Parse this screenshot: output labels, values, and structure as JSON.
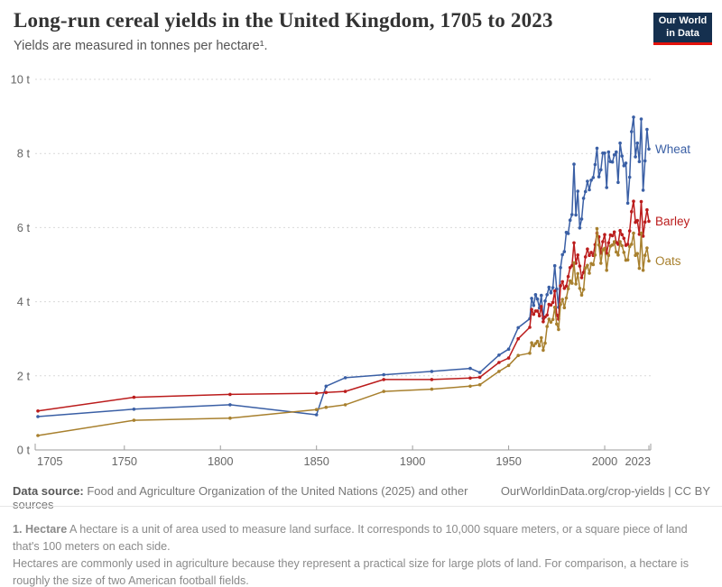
{
  "header": {
    "title": "Long-run cereal yields in the United Kingdom, 1705 to 2023",
    "subtitle": "Yields are measured in tonnes per hectare¹.",
    "logo": {
      "line1": "Our World",
      "line2": "in Data"
    }
  },
  "footer": {
    "source_label": "Data source:",
    "source_text": " Food and Agriculture Organization of the United Nations (2025) and other sources",
    "link": "OurWorldinData.org/crop-yields",
    "license": " | CC BY"
  },
  "footnote": {
    "term": "1. Hectare",
    "line1": " A hectare is a unit of area used to measure land surface. It corresponds to 10,000 square meters, or a square piece of land that's 100 meters on each side.",
    "line2": "Hectares are commonly used in agriculture because they represent a practical size for large plots of land. For comparison, a hectare is roughly the size of two American football fields."
  },
  "colors": {
    "wheat": "#3a5fa5",
    "barley": "#bb1c1c",
    "oats": "#a8802e",
    "grid": "#d9d9d9",
    "axis": "#9e9e9e",
    "tick_text": "#666666",
    "logo_bg": "#15304F",
    "logo_underline": "#e3120b"
  },
  "chart_data": {
    "type": "line",
    "title": "Long-run cereal yields in the United Kingdom, 1705 to 2023",
    "ylabel": "tonnes per hectare",
    "xlabel": "",
    "grid": true,
    "legend_position": "right-end-labels",
    "xlim": [
      1705,
      2023
    ],
    "ylim": [
      0,
      10
    ],
    "x_ticks": [
      1705,
      1750,
      1800,
      1850,
      1900,
      1950,
      2000,
      2023
    ],
    "x_tick_labels": [
      "1705",
      "1750",
      "1800",
      "1850",
      "1900",
      "1950",
      "2000",
      "2023"
    ],
    "y_ticks": [
      0,
      2,
      4,
      6,
      8,
      10
    ],
    "y_tick_labels": [
      "0 t",
      "2 t",
      "4 t",
      "6 t",
      "8 t",
      "10 t"
    ],
    "x": [
      1705,
      1755,
      1805,
      1850,
      1855,
      1865,
      1885,
      1910,
      1930,
      1935,
      1945,
      1950,
      1955,
      1961,
      1962,
      1963,
      1964,
      1965,
      1966,
      1967,
      1968,
      1969,
      1970,
      1971,
      1972,
      1973,
      1974,
      1975,
      1976,
      1977,
      1978,
      1979,
      1980,
      1981,
      1982,
      1983,
      1984,
      1985,
      1986,
      1987,
      1988,
      1989,
      1990,
      1991,
      1992,
      1993,
      1994,
      1995,
      1996,
      1997,
      1998,
      1999,
      2000,
      2001,
      2002,
      2003,
      2004,
      2005,
      2006,
      2007,
      2008,
      2009,
      2010,
      2011,
      2012,
      2013,
      2014,
      2015,
      2016,
      2017,
      2018,
      2019,
      2020,
      2021,
      2022,
      2023
    ],
    "series": [
      {
        "name": "Wheat",
        "color": "#3a5fa5",
        "values": [
          0.9,
          1.1,
          1.22,
          0.95,
          1.72,
          1.95,
          2.03,
          2.12,
          2.2,
          2.09,
          2.56,
          2.72,
          3.3,
          3.54,
          4.09,
          3.9,
          4.19,
          4.07,
          3.83,
          4.17,
          3.55,
          4.02,
          4.19,
          4.39,
          4.24,
          4.38,
          4.97,
          4.34,
          3.85,
          4.92,
          5.27,
          5.35,
          5.87,
          5.84,
          6.2,
          6.35,
          7.71,
          6.34,
          6.98,
          5.99,
          6.23,
          6.79,
          6.97,
          7.25,
          7.02,
          7.28,
          7.35,
          7.7,
          8.14,
          7.37,
          7.56,
          8.01,
          8.01,
          7.08,
          8.04,
          7.78,
          7.77,
          7.96,
          8.04,
          7.22,
          8.28,
          7.93,
          7.67,
          7.74,
          6.66,
          7.36,
          8.59,
          8.98,
          7.91,
          8.28,
          7.78,
          8.93,
          7.01,
          7.8,
          8.65,
          8.12
        ]
      },
      {
        "name": "Barley",
        "color": "#bb1c1c",
        "values": [
          1.05,
          1.42,
          1.5,
          1.53,
          1.55,
          1.58,
          1.9,
          1.9,
          1.94,
          1.96,
          2.36,
          2.48,
          3.0,
          3.31,
          3.79,
          3.66,
          3.75,
          3.75,
          3.62,
          3.87,
          3.46,
          3.59,
          3.64,
          3.93,
          3.91,
          3.98,
          4.29,
          3.64,
          3.53,
          4.43,
          4.54,
          4.36,
          4.42,
          4.68,
          4.92,
          4.97,
          5.59,
          5.04,
          5.26,
          4.96,
          4.65,
          4.79,
          5.21,
          5.42,
          5.25,
          5.33,
          5.25,
          5.54,
          5.85,
          5.75,
          5.31,
          5.62,
          5.81,
          5.31,
          5.59,
          5.8,
          5.78,
          5.88,
          5.6,
          5.55,
          5.92,
          5.81,
          5.71,
          5.52,
          5.55,
          5.91,
          6.43,
          6.71,
          6.14,
          6.19,
          5.82,
          6.7,
          5.77,
          6.15,
          6.48,
          6.17
        ]
      },
      {
        "name": "Oats",
        "color": "#a8802e",
        "values": [
          0.39,
          0.8,
          0.86,
          1.09,
          1.15,
          1.22,
          1.58,
          1.64,
          1.72,
          1.76,
          2.12,
          2.28,
          2.55,
          2.61,
          2.89,
          2.81,
          2.87,
          2.93,
          2.81,
          3.03,
          2.69,
          2.88,
          3.33,
          3.53,
          3.45,
          3.52,
          3.85,
          3.4,
          3.25,
          3.93,
          4.06,
          3.84,
          4.1,
          4.35,
          4.56,
          4.5,
          5.05,
          4.48,
          4.76,
          4.36,
          4.18,
          4.33,
          4.91,
          4.98,
          4.77,
          5.03,
          5.0,
          5.26,
          5.97,
          5.53,
          5.04,
          5.4,
          5.44,
          4.85,
          5.25,
          5.5,
          5.53,
          5.62,
          5.34,
          5.26,
          5.62,
          5.51,
          5.33,
          5.12,
          5.13,
          5.49,
          5.55,
          5.85,
          5.25,
          5.3,
          4.9,
          5.85,
          4.85,
          5.25,
          5.45,
          5.1
        ]
      }
    ]
  }
}
